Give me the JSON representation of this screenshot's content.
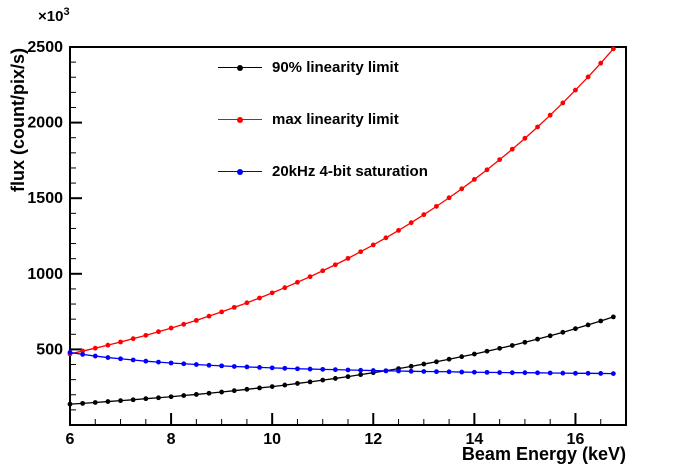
{
  "chart_data": {
    "type": "line",
    "title": "",
    "xlabel": "Beam Energy (keV)",
    "ylabel": "flux (count/pix/s)",
    "y_multiplier": {
      "base": "×10",
      "exp": "3"
    },
    "xlim": [
      6,
      17
    ],
    "ylim": [
      0,
      2500
    ],
    "x_major_ticks": [
      6,
      8,
      10,
      12,
      14,
      16
    ],
    "y_major_ticks": [
      500,
      1000,
      1500,
      2000,
      2500
    ],
    "x_minor_step": 0.5,
    "y_minor_step": 100,
    "grid": false,
    "legend_position": "upper-left-inside",
    "units_note": "y values in 10^3 count/pix/s",
    "x": [
      6,
      6.25,
      6.5,
      6.75,
      7,
      7.25,
      7.5,
      7.75,
      8,
      8.25,
      8.5,
      8.75,
      9,
      9.25,
      9.5,
      9.75,
      10,
      10.25,
      10.5,
      10.75,
      11,
      11.25,
      11.5,
      11.75,
      12,
      12.25,
      12.5,
      12.75,
      13,
      13.25,
      13.5,
      13.75,
      14,
      14.25,
      14.5,
      14.75,
      15,
      15.25,
      15.5,
      15.75,
      16,
      16.25,
      16.5,
      16.75
    ],
    "series": [
      {
        "name": "90% linearity limit",
        "color": "#000000",
        "marker": "dot",
        "values": [
          138,
          143,
          149,
          155,
          161,
          167,
          174,
          180,
          187,
          195,
          202,
          210,
          218,
          227,
          236,
          245,
          254,
          264,
          275,
          285,
          297,
          308,
          320,
          333,
          346,
          359,
          373,
          388,
          403,
          418,
          435,
          452,
          469,
          488,
          507,
          526,
          547,
          568,
          590,
          613,
          637,
          662,
          688,
          715
        ]
      },
      {
        "name": "max linearity limit",
        "color": "#ff0000",
        "marker": "dot",
        "values": [
          470,
          489,
          508,
          528,
          549,
          571,
          593,
          617,
          641,
          666,
          692,
          720,
          748,
          778,
          808,
          840,
          874,
          908,
          944,
          981,
          1020,
          1060,
          1102,
          1146,
          1191,
          1238,
          1287,
          1338,
          1391,
          1446,
          1503,
          1562,
          1624,
          1688,
          1755,
          1824,
          1896,
          1971,
          2049,
          2130,
          2215,
          2302,
          2393,
          2488
        ]
      },
      {
        "name": "20kHz 4-bit saturation",
        "color": "#0000ff",
        "marker": "dot",
        "values": [
          480,
          467,
          456,
          446,
          438,
          430,
          422,
          416,
          410,
          405,
          400,
          395,
          391,
          387,
          384,
          381,
          378,
          375,
          372,
          370,
          368,
          366,
          364,
          362,
          360,
          358,
          357,
          355,
          354,
          353,
          352,
          350,
          349,
          348,
          347,
          346,
          346,
          345,
          344,
          343,
          342,
          342,
          341,
          340
        ]
      }
    ]
  }
}
